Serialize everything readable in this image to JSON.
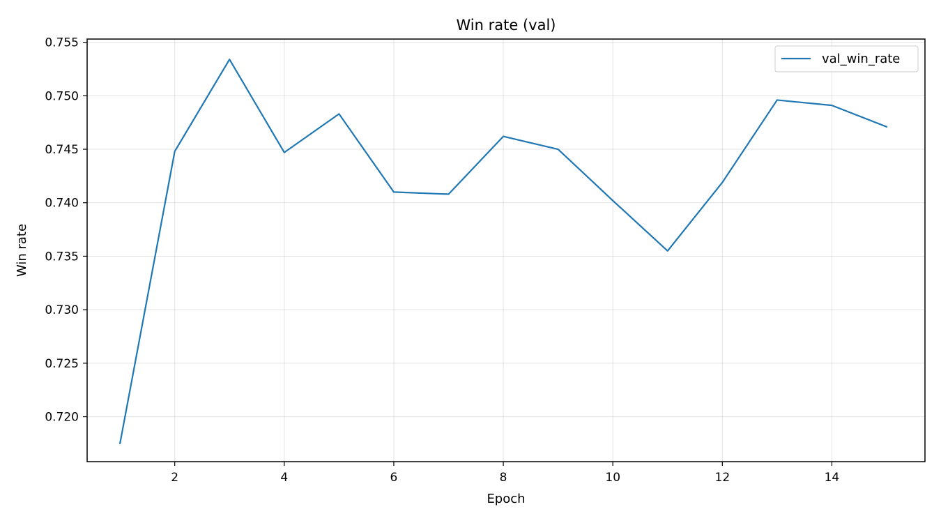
{
  "chart_data": {
    "type": "line",
    "title": "Win rate (val)",
    "xlabel": "Epoch",
    "ylabel": "Win rate",
    "xlim": [
      0.4,
      15.7
    ],
    "ylim": [
      0.7158,
      0.7553
    ],
    "xticks": [
      2,
      4,
      6,
      8,
      10,
      12,
      14
    ],
    "xtick_labels": [
      "2",
      "4",
      "6",
      "8",
      "10",
      "12",
      "14"
    ],
    "yticks": [
      0.72,
      0.725,
      0.73,
      0.735,
      0.74,
      0.745,
      0.75,
      0.755
    ],
    "ytick_labels": [
      "0.720",
      "0.725",
      "0.730",
      "0.735",
      "0.740",
      "0.745",
      "0.750",
      "0.755"
    ],
    "grid": true,
    "legend_position": "top-right",
    "series": [
      {
        "name": "val_win_rate",
        "color": "#1f77b4",
        "x": [
          1,
          2,
          3,
          4,
          5,
          6,
          7,
          8,
          9,
          10,
          11,
          12,
          13,
          14,
          15
        ],
        "values": [
          0.7175,
          0.7448,
          0.7534,
          0.7447,
          0.7483,
          0.741,
          0.7408,
          0.7462,
          0.745,
          0.7402,
          0.7355,
          0.7419,
          0.7496,
          0.7491,
          0.7471
        ]
      }
    ]
  }
}
